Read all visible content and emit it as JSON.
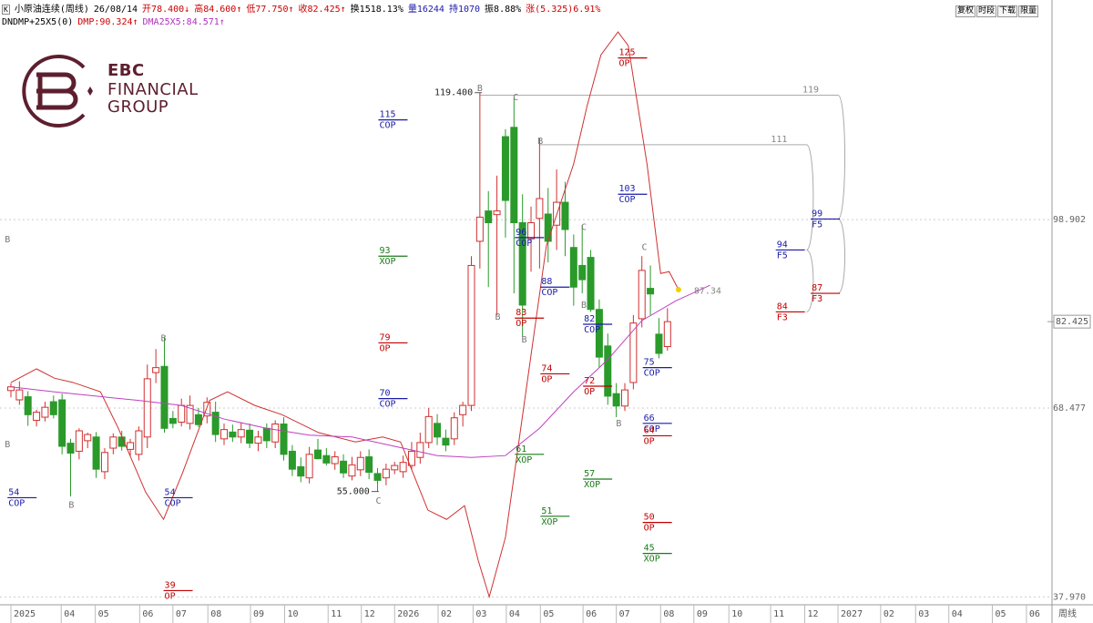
{
  "header": {
    "icon": "K",
    "items": [
      {
        "text": "小原油连续(周线)",
        "color": "#000000"
      },
      {
        "text": "26/08/14",
        "color": "#000000"
      },
      {
        "text": "开78.400↓",
        "color": "#cc0000"
      },
      {
        "text": "高84.600↑",
        "color": "#cc0000"
      },
      {
        "text": "低77.750↑",
        "color": "#cc0000"
      },
      {
        "text": "收82.425↑",
        "color": "#cc0000"
      },
      {
        "text": "换1518.13%",
        "color": "#000000"
      },
      {
        "text": "量16244",
        "color": "#1a1aa6"
      },
      {
        "text": "持1070",
        "color": "#1a1aa6"
      },
      {
        "text": "振8.88%",
        "color": "#000000"
      },
      {
        "text": "涨(5.325)6.91%",
        "color": "#cc0000"
      }
    ]
  },
  "indicator_header": [
    {
      "text": "DNDMP+25X5(0)",
      "color": "#000000"
    },
    {
      "text": "DMP:90.324↑",
      "color": "#cc0000"
    },
    {
      "text": "DMA25X5:84.571↑",
      "color": "#b030c0"
    }
  ],
  "buttons": [
    "复权",
    "时段",
    "下载",
    "限量"
  ],
  "logo": {
    "name": "EBC",
    "line2": "FINANCIAL",
    "line3": "GROUP"
  },
  "chart_data": {
    "type": "candlestick",
    "up_color": "#d03030",
    "down_color": "#2a9a2a",
    "xlim": [
      -1.28,
      122.1
    ],
    "ylim": [
      36.71,
      134.36
    ],
    "yticks": [
      98.902,
      68.477,
      {
        "value": 37.97,
        "label": "37.970"
      }
    ],
    "grid": true,
    "last_price": 82.425,
    "period_label": "周线",
    "xticks": [
      {
        "value": 0,
        "label": "2025"
      },
      {
        "value": 5.9,
        "label": "04"
      },
      {
        "value": 9.9,
        "label": "05"
      },
      {
        "value": 15.1,
        "label": "06"
      },
      {
        "value": 19,
        "label": "07"
      },
      {
        "value": 23.1,
        "label": "08"
      },
      {
        "value": 28.1,
        "label": "09"
      },
      {
        "value": 32.1,
        "label": "10"
      },
      {
        "value": 37.2,
        "label": "11"
      },
      {
        "value": 41.1,
        "label": "12"
      },
      {
        "value": 45,
        "label": "2026"
      },
      {
        "value": 50.1,
        "label": "02"
      },
      {
        "value": 54.2,
        "label": "03"
      },
      {
        "value": 58.1,
        "label": "04"
      },
      {
        "value": 62.1,
        "label": "05"
      },
      {
        "value": 67.1,
        "label": "06"
      },
      {
        "value": 71,
        "label": "07"
      },
      {
        "value": 76.2,
        "label": "08"
      },
      {
        "value": 80.1,
        "label": "09"
      },
      {
        "value": 84.2,
        "label": "10"
      },
      {
        "value": 89.1,
        "label": "11"
      },
      {
        "value": 93.1,
        "label": "12"
      },
      {
        "value": 97,
        "label": "2027"
      },
      {
        "value": 102,
        "label": "02"
      },
      {
        "value": 106.1,
        "label": "03"
      },
      {
        "value": 110,
        "label": "04"
      },
      {
        "value": 115.1,
        "label": "05"
      },
      {
        "value": 119.1,
        "label": "06"
      }
    ],
    "ohlc": [
      [
        71.3,
        72.5,
        70.2,
        71.9
      ],
      [
        69.8,
        72.8,
        69.0,
        71.4
      ],
      [
        70.3,
        71.2,
        65.6,
        67.4
      ],
      [
        66.5,
        68.2,
        65.5,
        67.8
      ],
      [
        67.0,
        69.5,
        66.3,
        68.6
      ],
      [
        69.5,
        70.5,
        66.8,
        67.4
      ],
      [
        69.8,
        70.8,
        61.0,
        62.3
      ],
      [
        62.8,
        63.5,
        54.2,
        61.2
      ],
      [
        61.5,
        65.2,
        60.2,
        64.8
      ],
      [
        63.2,
        64.5,
        62.0,
        64.2
      ],
      [
        63.8,
        64.6,
        57.2,
        58.6
      ],
      [
        58.2,
        62.0,
        57.0,
        61.3
      ],
      [
        62.0,
        64.4,
        61.0,
        63.8
      ],
      [
        63.8,
        64.8,
        61.6,
        62.3
      ],
      [
        61.8,
        63.5,
        60.8,
        62.9
      ],
      [
        61.0,
        65.5,
        60.0,
        64.8
      ],
      [
        63.8,
        75.5,
        62.0,
        73.2
      ],
      [
        74.2,
        78.0,
        72.5,
        75.0
      ],
      [
        75.2,
        80.0,
        64.5,
        65.2
      ],
      [
        66.8,
        68.0,
        65.2,
        66.0
      ],
      [
        66.2,
        70.0,
        65.5,
        68.9
      ],
      [
        66.0,
        70.5,
        65.0,
        68.9
      ],
      [
        67.4,
        68.5,
        65.4,
        65.8
      ],
      [
        67.2,
        70.2,
        66.0,
        69.4
      ],
      [
        67.8,
        69.5,
        63.0,
        64.2
      ],
      [
        63.5,
        66.0,
        62.5,
        65.0
      ],
      [
        64.6,
        65.8,
        63.0,
        63.8
      ],
      [
        63.8,
        66.2,
        62.8,
        65.0
      ],
      [
        64.9,
        66.0,
        62.0,
        62.8
      ],
      [
        62.8,
        64.8,
        61.5,
        63.8
      ],
      [
        65.2,
        66.0,
        62.0,
        63.2
      ],
      [
        63.0,
        66.5,
        62.0,
        65.9
      ],
      [
        65.9,
        67.0,
        60.0,
        61.0
      ],
      [
        61.5,
        62.5,
        57.5,
        58.6
      ],
      [
        59.0,
        60.5,
        56.5,
        57.5
      ],
      [
        57.2,
        62.2,
        56.3,
        61.0
      ],
      [
        61.7,
        63.5,
        60.2,
        60.3
      ],
      [
        60.8,
        62.0,
        59.2,
        59.6
      ],
      [
        59.5,
        61.5,
        58.5,
        60.6
      ],
      [
        59.9,
        61.0,
        57.2,
        58.0
      ],
      [
        57.5,
        60.6,
        56.8,
        59.3
      ],
      [
        58.5,
        61.5,
        57.5,
        60.5
      ],
      [
        60.6,
        61.8,
        57.0,
        58.1
      ],
      [
        57.9,
        58.8,
        55.0,
        56.8
      ],
      [
        57.2,
        59.5,
        56.0,
        58.6
      ],
      [
        58.5,
        59.8,
        57.8,
        59.2
      ],
      [
        58.2,
        60.8,
        57.2,
        59.7
      ],
      [
        59.2,
        63.0,
        58.5,
        61.5
      ],
      [
        60.5,
        64.5,
        59.5,
        62.9
      ],
      [
        62.9,
        68.5,
        62.0,
        67.1
      ],
      [
        66.0,
        67.5,
        62.5,
        63.8
      ],
      [
        63.6,
        65.0,
        61.5,
        62.5
      ],
      [
        63.5,
        67.8,
        62.5,
        66.9
      ],
      [
        67.4,
        69.5,
        65.5,
        68.9
      ],
      [
        68.9,
        93.0,
        68.0,
        91.5
      ],
      [
        95.4,
        119.4,
        91.0,
        99.3
      ],
      [
        100.3,
        103.5,
        88.0,
        98.4
      ],
      [
        99.7,
        106.0,
        83.5,
        100.3
      ],
      [
        112.3,
        113.5,
        96.0,
        102.0
      ],
      [
        113.8,
        118.5,
        87.0,
        98.4
      ],
      [
        98.4,
        103.0,
        80.0,
        85.1
      ],
      [
        95.8,
        101.0,
        90.5,
        98.4
      ],
      [
        99.1,
        112.0,
        91.0,
        102.3
      ],
      [
        99.8,
        104.0,
        92.0,
        95.4
      ],
      [
        98.0,
        107.0,
        94.0,
        101.7
      ],
      [
        101.7,
        105.0,
        93.0,
        97.3
      ],
      [
        94.4,
        96.5,
        85.0,
        88.0
      ],
      [
        91.5,
        98.0,
        87.0,
        89.2
      ],
      [
        92.8,
        94.0,
        84.0,
        84.4
      ],
      [
        84.4,
        86.0,
        75.0,
        76.7
      ],
      [
        78.5,
        80.5,
        69.0,
        70.4
      ],
      [
        70.8,
        72.5,
        67.0,
        68.8
      ],
      [
        68.8,
        72.5,
        68.0,
        71.4
      ],
      [
        72.6,
        83.5,
        71.5,
        82.2
      ],
      [
        82.9,
        93.0,
        81.5,
        90.7
      ],
      [
        87.8,
        91.5,
        83.5,
        86.9
      ],
      [
        80.4,
        83.0,
        76.5,
        77.3
      ],
      [
        78.4,
        84.6,
        77.75,
        82.425
      ]
    ],
    "series": [
      {
        "color": "#d03030",
        "x": [
          0,
          3,
          5.1,
          7.3,
          10.5,
          12.6,
          15.8,
          17.9,
          20.1,
          21.7,
          23.3,
          25.4,
          28.6,
          31.8,
          36.1,
          40.4,
          43.6,
          45.7,
          48.9,
          51.1,
          53.2,
          54.8,
          56.1,
          58,
          60.1,
          62.8,
          66,
          67.6,
          69.2,
          71.2,
          72.4,
          74.6,
          76.2,
          77.2,
          78.3
        ],
        "values": [
          72.6,
          74.8,
          73.3,
          72.6,
          71.1,
          65.2,
          54.9,
          50.5,
          57.9,
          63.8,
          69.7,
          71.1,
          68.9,
          67.4,
          64.5,
          63.0,
          63.8,
          63.0,
          52.0,
          50.5,
          52.7,
          43.9,
          38.0,
          47.6,
          68.2,
          94.7,
          107.9,
          117.4,
          125.5,
          129.2,
          127.0,
          107.9,
          90.2,
          90.5,
          87.6
        ]
      },
      {
        "color": "#c040c0",
        "x": [
          0,
          5,
          10,
          15,
          20,
          25,
          30,
          35,
          40,
          45,
          50,
          54,
          58,
          62,
          66,
          70,
          74,
          78,
          82
        ],
        "values": [
          71.9,
          71.1,
          70.4,
          69.7,
          68.9,
          66.7,
          65.2,
          64.1,
          63.8,
          62.3,
          60.8,
          60.5,
          60.8,
          65.2,
          71.1,
          76.3,
          82.6,
          85.8,
          88.3
        ]
      }
    ],
    "end_marker_color": "#f0d000",
    "end_label": {
      "value": 87.34,
      "x": 80.1
    },
    "tag_colors": {
      "COP": "#1a1aa6",
      "OP": "#c00000",
      "XOP": "#1a7a1a",
      "F5": "#1a1aa6",
      "F3": "#c00000"
    },
    "levels": [
      {
        "value": 115,
        "tag": "COP",
        "x": 43.1
      },
      {
        "value": 93,
        "tag": "XOP",
        "x": 43.1
      },
      {
        "value": 79,
        "tag": "OP",
        "x": 43.1
      },
      {
        "value": 70,
        "tag": "COP",
        "x": 43.1
      },
      {
        "value": 54,
        "tag": "COP",
        "x": -0.4
      },
      {
        "value": 54,
        "tag": "COP",
        "x": 17.9
      },
      {
        "value": 39,
        "tag": "OP",
        "x": 17.9
      },
      {
        "value": 125,
        "tag": "OP",
        "x": 71.2
      },
      {
        "value": 103,
        "tag": "COP",
        "x": 71.2
      },
      {
        "value": 96,
        "tag": "COP",
        "x": 59.1
      },
      {
        "value": 88,
        "tag": "COP",
        "x": 62.1
      },
      {
        "value": 83,
        "tag": "OP",
        "x": 59.1
      },
      {
        "value": 82,
        "tag": "COP",
        "x": 67.1
      },
      {
        "value": 74,
        "tag": "OP",
        "x": 62.1
      },
      {
        "value": 72,
        "tag": "OP",
        "x": 67.1
      },
      {
        "value": 75,
        "tag": "COP",
        "x": 74.1
      },
      {
        "value": 66,
        "tag": "COP",
        "x": 74.1
      },
      {
        "value": 64,
        "tag": "OP",
        "x": 74.1
      },
      {
        "value": 61,
        "tag": "XOP",
        "x": 59.1
      },
      {
        "value": 57,
        "tag": "XOP",
        "x": 67.1
      },
      {
        "value": 51,
        "tag": "XOP",
        "x": 62.1
      },
      {
        "value": 50,
        "tag": "OP",
        "x": 74.1
      },
      {
        "value": 45,
        "tag": "XOP",
        "x": 74.1
      },
      {
        "value": 94,
        "tag": "F5",
        "x": 89.7
      },
      {
        "value": 84,
        "tag": "F3",
        "x": 89.7
      },
      {
        "value": 99,
        "tag": "F5",
        "x": 93.8
      },
      {
        "value": 87,
        "tag": "F3",
        "x": 93.8
      }
    ],
    "projections": [
      {
        "value": 119,
        "x": [
          55,
          97
        ],
        "targets": [
          99,
          87
        ]
      },
      {
        "value": 111,
        "x": [
          62,
          93.3
        ],
        "targets": [
          94,
          84
        ]
      }
    ],
    "price_labels": [
      {
        "value": 119.4,
        "label": "119.400",
        "x": 54.6
      },
      {
        "value": 55,
        "label": "55.000",
        "x": 42.5
      }
    ],
    "pivots": [
      {
        "label": "B",
        "x": -0.4,
        "value": 95.7
      },
      {
        "label": "B",
        "x": -0.4,
        "value": 62.6
      },
      {
        "label": "B",
        "x": 7.1,
        "value": 52.8
      },
      {
        "label": "B",
        "x": 17.9,
        "value": 79.7
      },
      {
        "label": "C",
        "x": 43.1,
        "value": 53.5
      },
      {
        "label": "B",
        "x": 55,
        "value": 120.1
      },
      {
        "label": "C",
        "x": 59.2,
        "value": 118.6
      },
      {
        "label": "B",
        "x": 57.1,
        "value": 83.2
      },
      {
        "label": "B",
        "x": 60.2,
        "value": 79.5
      },
      {
        "label": "B",
        "x": 62.1,
        "value": 111.6
      },
      {
        "label": "C",
        "x": 67.2,
        "value": 97.7
      },
      {
        "label": "B",
        "x": 67.2,
        "value": 85.1
      },
      {
        "label": "B",
        "x": 71.3,
        "value": 66.0
      },
      {
        "label": "C",
        "x": 74.3,
        "value": 94.4
      }
    ]
  }
}
